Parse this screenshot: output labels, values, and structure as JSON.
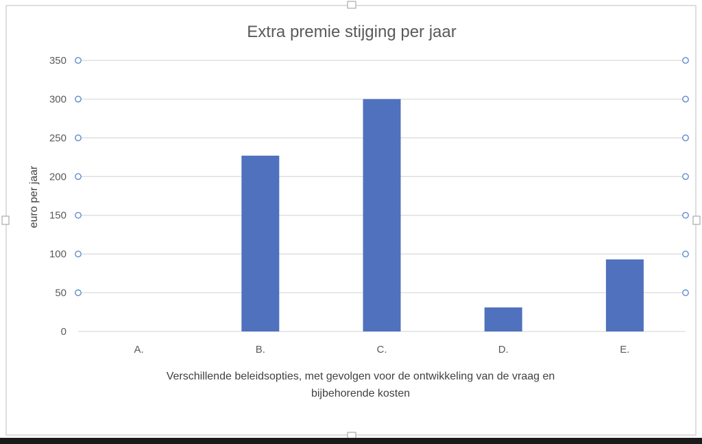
{
  "colors": {
    "bar": "#4F71BE",
    "gridline": "#D9D9D9",
    "axis_text": "#595959",
    "handle_circle": "#5B8BD0",
    "frame_border": "#C9C9C9"
  },
  "chart_data": {
    "type": "bar",
    "title": "Extra premie stijging per jaar",
    "xlabel": "Verschillende beleidsopties, met gevolgen voor de ontwikkeling van de vraag en bijbehorende kosten",
    "xlabel_lines": [
      "Verschillende beleidsopties, met gevolgen voor de ontwikkeling van de vraag en",
      "bijbehorende kosten"
    ],
    "ylabel": "euro per jaar",
    "categories": [
      "A.",
      "B.",
      "C.",
      "D.",
      "E."
    ],
    "values": [
      0,
      227,
      300,
      31,
      93
    ],
    "ylim": [
      0,
      350
    ],
    "yticks": [
      0,
      50,
      100,
      150,
      200,
      250,
      300,
      350
    ],
    "grid": true,
    "legend": "none"
  }
}
